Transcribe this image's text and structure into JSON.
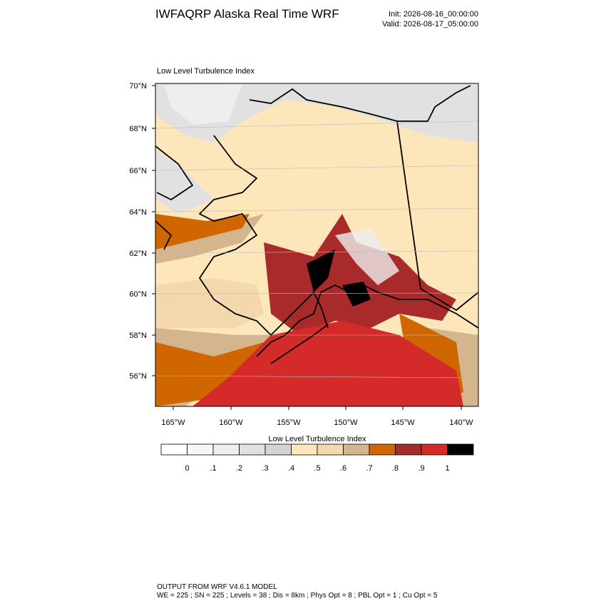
{
  "header": {
    "title": "IWFAQRP Alaska Real Time WRF",
    "init": "Init: 2026-08-16_00:00:00",
    "valid": "Valid: 2026-08-17_05:00:00"
  },
  "map": {
    "title": "Low Level Turbulence Index",
    "lat_labels": [
      "70°N",
      "68°N",
      "66°N",
      "64°N",
      "62°N",
      "60°N",
      "58°N",
      "56°N"
    ],
    "lon_labels": [
      "165°W",
      "160°W",
      "155°W",
      "150°W",
      "145°W",
      "140°W"
    ]
  },
  "colorbar": {
    "title": "Low Level Turbulence Index",
    "colors": [
      "#ffffff",
      "#f7f7f7",
      "#eeeeee",
      "#e1e1e1",
      "#d4d4d4",
      "#fde6b9",
      "#f3d8ae",
      "#d5b58e",
      "#cf6600",
      "#a82a2a",
      "#d42a2a",
      "#000000"
    ],
    "ticks": [
      {
        "value": 0,
        "label": "0"
      },
      {
        "value": 0.1,
        "label": ".1"
      },
      {
        "value": 0.2,
        "label": ".2"
      },
      {
        "value": 0.3,
        "label": ".3"
      },
      {
        "value": 0.4,
        "label": ".4"
      },
      {
        "value": 0.5,
        "label": ".5"
      },
      {
        "value": 0.6,
        "label": ".6"
      },
      {
        "value": 0.7,
        "label": ".7"
      },
      {
        "value": 0.8,
        "label": ".8"
      },
      {
        "value": 0.9,
        "label": ".9"
      },
      {
        "value": 1,
        "label": "1"
      }
    ]
  },
  "footer": {
    "line1": "OUTPUT FROM WRF V4.6.1 MODEL",
    "line2": "WE = 225 ; SN = 225 ; Levels = 38 ; Dis = 8km ; Phys Opt = 8 ; PBL Opt = 1 ; Cu Opt = 5"
  }
}
